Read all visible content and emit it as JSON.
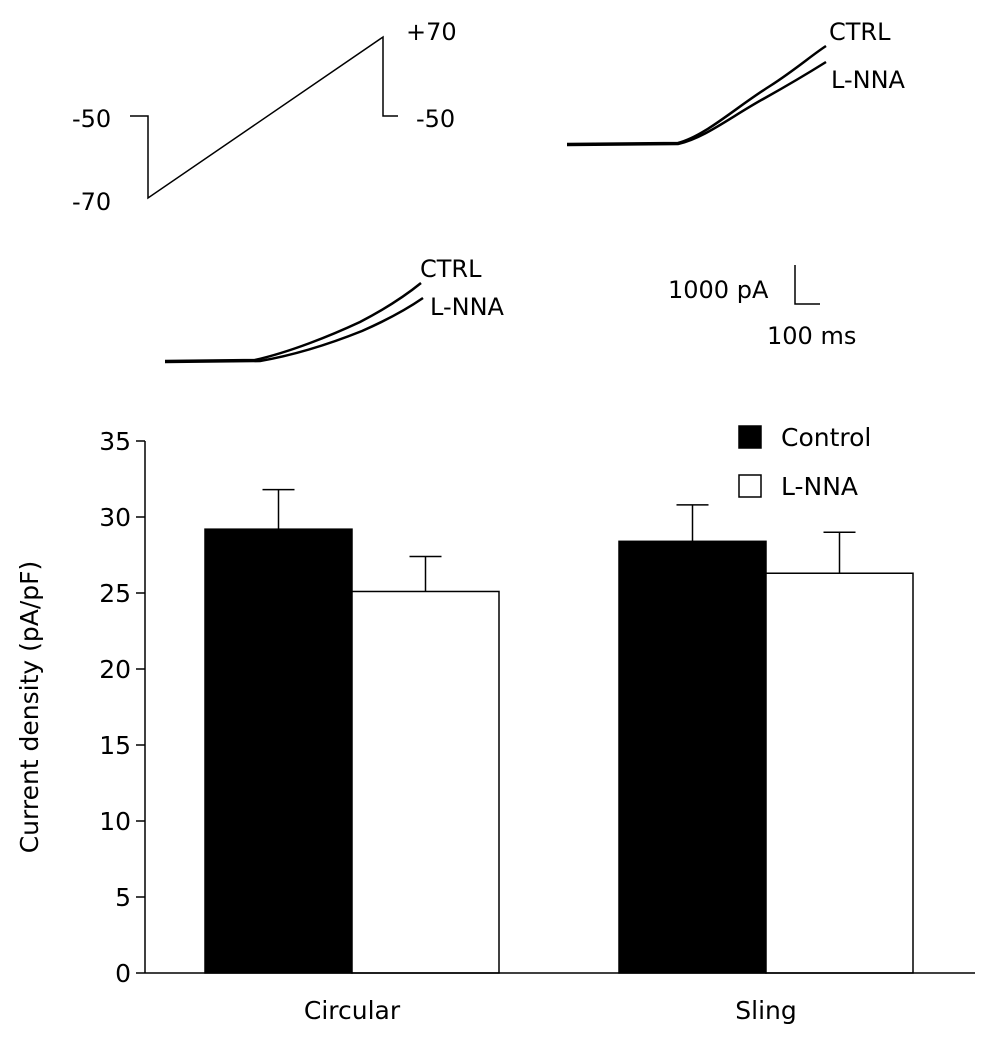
{
  "protocol": {
    "hold_label": "-50",
    "step_label": "-70",
    "peak_label": "+70",
    "end_label": "-50"
  },
  "traces": {
    "panel_a": {
      "ctrl_label": "CTRL",
      "lnna_label": "L-NNA"
    },
    "panel_b": {
      "ctrl_label": "CTRL",
      "lnna_label": "L-NNA"
    }
  },
  "scale_bar": {
    "current_label": "1000 pA",
    "time_label": "100 ms"
  },
  "chart_data": {
    "type": "bar",
    "categories": [
      "Circular",
      "Sling"
    ],
    "series": [
      {
        "name": "Control",
        "color": "#000000",
        "values": [
          29.2,
          28.4
        ],
        "errors": [
          2.6,
          2.4
        ]
      },
      {
        "name": "L-NNA",
        "color": "#ffffff",
        "values": [
          25.1,
          26.3
        ],
        "errors": [
          2.3,
          2.7
        ]
      }
    ],
    "ylabel": "Current density (pA/pF)",
    "xlabel": "",
    "ylim": [
      0,
      35
    ],
    "yticks": [
      0,
      5,
      10,
      15,
      20,
      25,
      30,
      35
    ],
    "legend_position": "top-right",
    "grid": false
  }
}
